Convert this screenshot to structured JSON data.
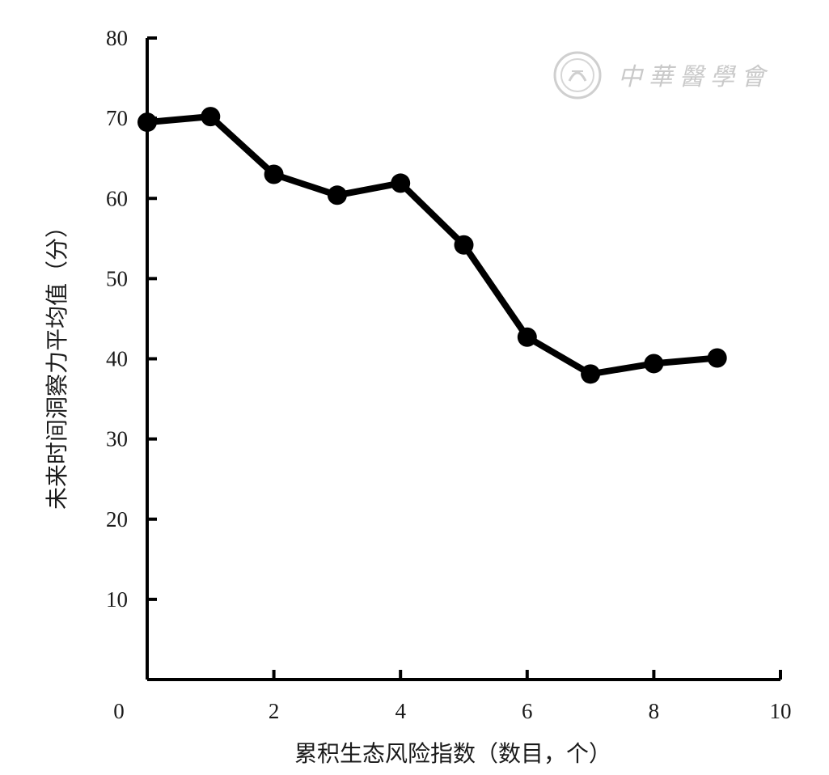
{
  "chart_data": {
    "type": "line",
    "title": "",
    "xlabel": "累积生态风险指数（数目，个）",
    "ylabel": "未来时间洞察力平均值（分）",
    "xlim": [
      0,
      10
    ],
    "ylim": [
      0,
      80
    ],
    "x_ticks": [
      0,
      2,
      4,
      6,
      8,
      10
    ],
    "y_ticks": [
      10,
      20,
      30,
      40,
      50,
      60,
      70,
      80
    ],
    "x_minor_ticks": [
      0,
      1,
      2,
      3,
      4,
      5,
      6,
      7,
      8,
      9,
      10
    ],
    "grid": false,
    "legend": "none",
    "series": [
      {
        "x": [
          0,
          1,
          2,
          3,
          4,
          5,
          6,
          7,
          8,
          9
        ],
        "y": [
          69.5,
          70.2,
          63.0,
          60.4,
          61.9,
          54.2,
          42.7,
          38.1,
          39.4,
          40.1
        ],
        "color": "#000000",
        "marker": "circle"
      }
    ]
  },
  "watermark": {
    "text": "中華醫學會",
    "color": "#c9c9c9",
    "icon": "society-seal-icon"
  }
}
